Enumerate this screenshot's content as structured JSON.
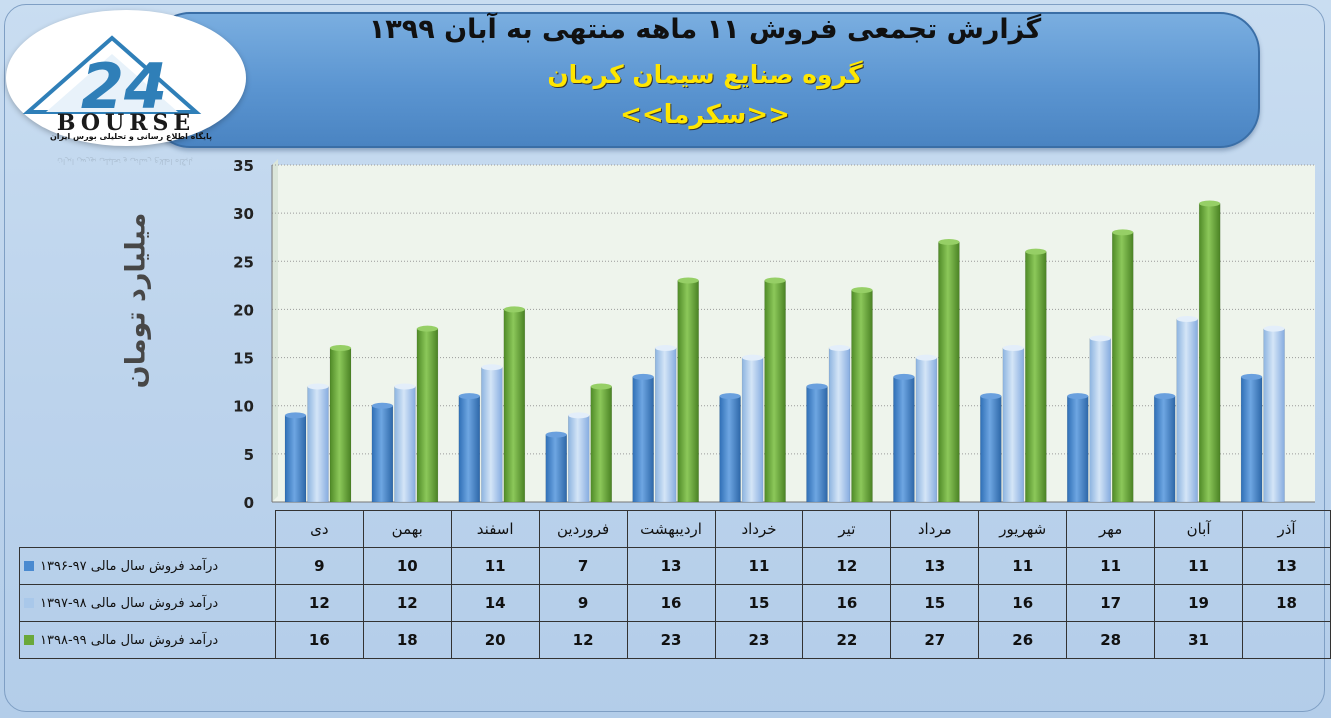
{
  "header": {
    "title": "گزارش تجمعی فروش ۱۱ ماهه منتهی به آبان ۱۳۹۹",
    "company": "گروه صنایع سیمان کرمان",
    "symbol": "<<سکرما>>"
  },
  "logo": {
    "number": "24",
    "brand": "BOURSE",
    "tagline": "پایگاه اطلاع رسانی و تحلیلی بورس ایران",
    "colors": {
      "primary": "#2f7fb8",
      "text": "#1a1a1a"
    }
  },
  "colors": {
    "series_blue": "#4a8ad0",
    "series_lightblue": "#a9c8ea",
    "series_green": "#6aa83a",
    "banner": "#5b95d1",
    "subtitle": "#ffe600"
  },
  "chart_data": {
    "type": "bar",
    "ylabel": "میلیارد تومان",
    "ylim": [
      0,
      35
    ],
    "yticks": [
      0,
      5,
      10,
      15,
      20,
      25,
      30,
      35
    ],
    "grid": true,
    "legend": "table",
    "categories": [
      "دی",
      "بهمن",
      "اسفند",
      "فروردین",
      "اردیبهشت",
      "خرداد",
      "تیر",
      "مرداد",
      "شهریور",
      "مهر",
      "آبان",
      "آذر"
    ],
    "series": [
      {
        "name": "درآمد فروش سال مالی ۹۷-۱۳۹۶",
        "color": "#4a8ad0",
        "values": [
          9,
          10,
          11,
          7,
          13,
          11,
          12,
          13,
          11,
          11,
          11,
          13
        ]
      },
      {
        "name": "درآمد فروش سال مالی ۹۸-۱۳۹۷",
        "color": "#a9c8ea",
        "values": [
          12,
          12,
          14,
          9,
          16,
          15,
          16,
          15,
          16,
          17,
          19,
          18
        ]
      },
      {
        "name": "درآمد فروش سال مالی ۹۹-۱۳۹۸",
        "color": "#6aa83a",
        "values": [
          16,
          18,
          20,
          12,
          23,
          23,
          22,
          27,
          26,
          28,
          31,
          null
        ]
      }
    ]
  }
}
